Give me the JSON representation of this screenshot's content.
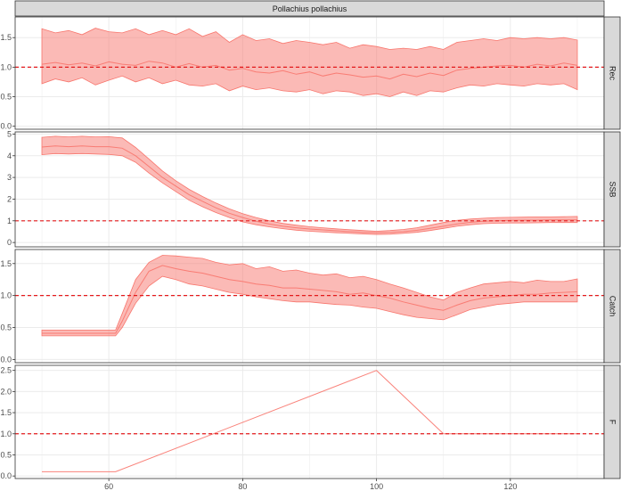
{
  "chart_data": {
    "type": "area",
    "title": "Pollachius pollachius",
    "xlabel": "",
    "xlim": [
      46,
      134
    ],
    "x_ticks": [
      60,
      80,
      100,
      120
    ],
    "grid": true,
    "colors": {
      "band_fill": "#f8766d",
      "band_line": "#f8766d",
      "reference_line": "#e41a1c",
      "strip_bg": "#d9d9d9",
      "grid": "#ebebeb",
      "border": "#333333"
    },
    "reference_value": 1,
    "panels": [
      {
        "label": "Rec",
        "ylim": [
          -0.05,
          1.85
        ],
        "y_ticks": [
          "0.0",
          "0.5",
          "1.0",
          "1.5"
        ],
        "x": [
          50,
          52,
          54,
          56,
          58,
          60,
          62,
          64,
          66,
          68,
          70,
          72,
          74,
          76,
          78,
          80,
          82,
          84,
          86,
          88,
          90,
          92,
          94,
          96,
          98,
          100,
          102,
          104,
          106,
          108,
          110,
          112,
          114,
          116,
          118,
          120,
          122,
          124,
          126,
          128,
          130
        ],
        "median": [
          1.05,
          1.08,
          1.04,
          1.07,
          1.02,
          1.09,
          1.05,
          1.03,
          1.1,
          1.07,
          1.0,
          1.06,
          1.0,
          1.03,
          0.95,
          0.98,
          0.92,
          0.9,
          0.94,
          0.88,
          0.92,
          0.85,
          0.9,
          0.87,
          0.83,
          0.85,
          0.8,
          0.88,
          0.84,
          0.9,
          0.86,
          0.95,
          0.98,
          1.0,
          1.02,
          1.03,
          1.0,
          1.05,
          1.02,
          1.07,
          1.03
        ],
        "lower": [
          0.72,
          0.8,
          0.75,
          0.82,
          0.7,
          0.78,
          0.85,
          0.75,
          0.82,
          0.72,
          0.78,
          0.7,
          0.68,
          0.72,
          0.6,
          0.68,
          0.62,
          0.65,
          0.6,
          0.58,
          0.62,
          0.55,
          0.6,
          0.58,
          0.52,
          0.55,
          0.5,
          0.58,
          0.52,
          0.6,
          0.58,
          0.65,
          0.7,
          0.68,
          0.72,
          0.7,
          0.68,
          0.72,
          0.7,
          0.72,
          0.62
        ],
        "upper": [
          1.65,
          1.58,
          1.62,
          1.55,
          1.66,
          1.6,
          1.58,
          1.65,
          1.55,
          1.62,
          1.55,
          1.65,
          1.52,
          1.6,
          1.42,
          1.55,
          1.45,
          1.48,
          1.4,
          1.45,
          1.42,
          1.38,
          1.42,
          1.32,
          1.38,
          1.35,
          1.3,
          1.32,
          1.3,
          1.35,
          1.3,
          1.42,
          1.45,
          1.48,
          1.45,
          1.5,
          1.48,
          1.5,
          1.48,
          1.5,
          1.46
        ]
      },
      {
        "label": "SSB",
        "ylim": [
          -0.2,
          5.1
        ],
        "y_ticks": [
          "0",
          "1",
          "2",
          "3",
          "4",
          "5"
        ],
        "x": [
          50,
          52,
          54,
          56,
          58,
          60,
          62,
          64,
          66,
          68,
          70,
          72,
          74,
          76,
          78,
          80,
          82,
          84,
          86,
          88,
          90,
          92,
          94,
          96,
          98,
          100,
          102,
          104,
          106,
          108,
          110,
          112,
          114,
          116,
          118,
          120,
          122,
          124,
          126,
          128,
          130
        ],
        "median": [
          4.4,
          4.45,
          4.42,
          4.45,
          4.42,
          4.42,
          4.35,
          4.0,
          3.5,
          3.0,
          2.6,
          2.2,
          1.9,
          1.6,
          1.35,
          1.15,
          0.98,
          0.85,
          0.75,
          0.68,
          0.62,
          0.58,
          0.54,
          0.5,
          0.47,
          0.45,
          0.46,
          0.5,
          0.56,
          0.65,
          0.75,
          0.85,
          0.93,
          0.98,
          1.0,
          1.02,
          1.03,
          1.03,
          1.04,
          1.04,
          1.04
        ],
        "lower": [
          4.05,
          4.1,
          4.08,
          4.1,
          4.08,
          4.06,
          4.0,
          3.7,
          3.2,
          2.75,
          2.35,
          1.95,
          1.65,
          1.38,
          1.15,
          0.95,
          0.82,
          0.72,
          0.64,
          0.57,
          0.52,
          0.48,
          0.45,
          0.42,
          0.39,
          0.37,
          0.38,
          0.42,
          0.47,
          0.55,
          0.65,
          0.75,
          0.82,
          0.87,
          0.89,
          0.9,
          0.9,
          0.91,
          0.92,
          0.92,
          0.92
        ],
        "upper": [
          4.85,
          4.9,
          4.87,
          4.9,
          4.87,
          4.88,
          4.82,
          4.38,
          3.85,
          3.3,
          2.85,
          2.45,
          2.12,
          1.82,
          1.55,
          1.33,
          1.15,
          1.0,
          0.88,
          0.8,
          0.73,
          0.68,
          0.63,
          0.59,
          0.55,
          0.52,
          0.55,
          0.6,
          0.68,
          0.8,
          0.92,
          1.02,
          1.08,
          1.12,
          1.15,
          1.16,
          1.17,
          1.18,
          1.18,
          1.19,
          1.2
        ]
      },
      {
        "label": "Catch",
        "ylim": [
          -0.05,
          1.72
        ],
        "y_ticks": [
          "0.0",
          "0.5",
          "1.0",
          "1.5"
        ],
        "x": [
          50,
          52,
          54,
          56,
          58,
          60,
          61,
          62,
          64,
          66,
          68,
          70,
          72,
          74,
          76,
          78,
          80,
          82,
          84,
          86,
          88,
          90,
          92,
          94,
          96,
          98,
          100,
          102,
          104,
          106,
          108,
          110,
          112,
          114,
          116,
          118,
          120,
          122,
          124,
          126,
          128,
          130
        ],
        "median": [
          0.41,
          0.41,
          0.41,
          0.41,
          0.41,
          0.41,
          0.41,
          0.6,
          1.05,
          1.38,
          1.47,
          1.42,
          1.38,
          1.35,
          1.3,
          1.25,
          1.22,
          1.18,
          1.16,
          1.12,
          1.12,
          1.1,
          1.08,
          1.06,
          1.02,
          1.04,
          1.0,
          0.96,
          0.9,
          0.85,
          0.8,
          0.77,
          0.85,
          0.92,
          0.96,
          0.98,
          1.0,
          1.02,
          1.02,
          1.04,
          1.05,
          1.06
        ],
        "lower": [
          0.37,
          0.37,
          0.37,
          0.37,
          0.37,
          0.37,
          0.37,
          0.5,
          0.88,
          1.15,
          1.3,
          1.25,
          1.18,
          1.15,
          1.1,
          1.05,
          1.02,
          0.98,
          0.95,
          0.92,
          0.9,
          0.9,
          0.88,
          0.86,
          0.85,
          0.82,
          0.8,
          0.75,
          0.7,
          0.66,
          0.64,
          0.62,
          0.7,
          0.78,
          0.82,
          0.86,
          0.88,
          0.9,
          0.9,
          0.9,
          0.9,
          0.9
        ],
        "upper": [
          0.46,
          0.46,
          0.46,
          0.46,
          0.46,
          0.46,
          0.46,
          0.72,
          1.25,
          1.52,
          1.63,
          1.62,
          1.6,
          1.58,
          1.52,
          1.48,
          1.5,
          1.42,
          1.45,
          1.38,
          1.4,
          1.35,
          1.32,
          1.34,
          1.28,
          1.3,
          1.25,
          1.18,
          1.12,
          1.05,
          0.98,
          0.93,
          1.05,
          1.12,
          1.18,
          1.2,
          1.22,
          1.2,
          1.24,
          1.22,
          1.22,
          1.26
        ]
      },
      {
        "label": "F",
        "ylim": [
          -0.06,
          2.62
        ],
        "y_ticks": [
          "0.0",
          "0.5",
          "1.0",
          "1.5",
          "2.0",
          "2.5"
        ],
        "x": [
          50,
          61,
          100,
          110,
          130
        ],
        "median": [
          0.1,
          0.1,
          2.5,
          1.0,
          1.0
        ]
      }
    ]
  }
}
